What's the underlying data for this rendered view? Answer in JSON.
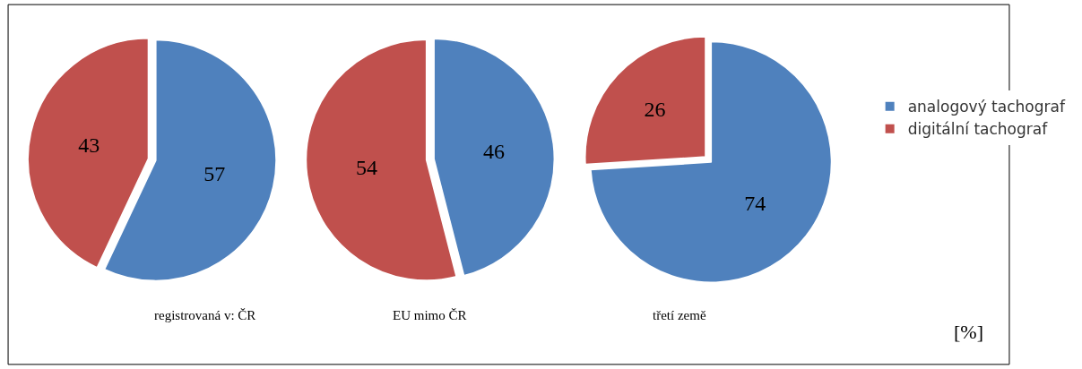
{
  "chart_data": {
    "type": "pie",
    "categories": [
      "analogový tachograf",
      "digitální tachograf"
    ],
    "colors": [
      "#4f81bd",
      "#c0504d"
    ],
    "data_labels": true,
    "legend": "right",
    "annotations": [
      "[%]"
    ],
    "series": [
      {
        "name": "registrovaná v: ČR",
        "values": [
          57,
          43
        ]
      },
      {
        "name": "EU mimo ČR",
        "values": [
          46,
          54
        ]
      },
      {
        "name": "třetí země",
        "values": [
          74,
          26
        ]
      }
    ]
  }
}
